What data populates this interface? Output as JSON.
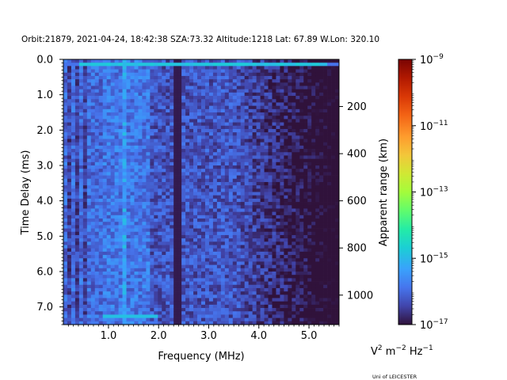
{
  "chart_data": {
    "type": "heatmap",
    "title": "Orbit:21879, 2021-04-24, 18:42:38 SZA:73.32 Altitude:1218 Lat: 67.89 W.Lon: 320.10",
    "xlabel": "Frequency (MHz)",
    "ylabel": "Time Delay (ms)",
    "y2label": "Apparent range (km)",
    "xlim": [
      0.1,
      5.6
    ],
    "ylim": [
      7.5,
      0.0
    ],
    "x_ticks": [
      1.0,
      2.0,
      3.0,
      4.0,
      5.0
    ],
    "x_tick_labels": [
      "1.0",
      "2.0",
      "3.0",
      "4.0",
      "5.0"
    ],
    "y_ticks": [
      0.0,
      1.0,
      2.0,
      3.0,
      4.0,
      5.0,
      6.0,
      7.0
    ],
    "y_tick_labels": [
      "0.0",
      "1.0",
      "2.0",
      "3.0",
      "4.0",
      "5.0",
      "6.0",
      "7.0"
    ],
    "y2_ticks_km": [
      200,
      400,
      600,
      800,
      1000
    ],
    "y2_tick_labels": [
      "200",
      "400",
      "600",
      "800",
      "1000"
    ],
    "km_per_ms": 150,
    "colormap": "turbo",
    "colorbar": {
      "scale": "log",
      "vmin_exp": -17,
      "vmax_exp": -9,
      "tick_exps": [
        -17,
        -15,
        -13,
        -11,
        -9
      ],
      "tick_labels": [
        "10−17",
        "10−15",
        "10−13",
        "10−11",
        "10−9"
      ],
      "units": "V² m⁻² Hz⁻¹"
    },
    "features": {
      "bright_row_at_ms": 0.15,
      "bright_row_at_ms_bottom": 7.3,
      "dark_column_at_mhz": 2.38,
      "bright_column_at_mhz": 1.32,
      "low_frequency_dark_band_mhz": [
        0.1,
        0.55
      ],
      "background_decays_above_mhz": 3.5
    },
    "credit": "Uni of LEICESTER"
  }
}
